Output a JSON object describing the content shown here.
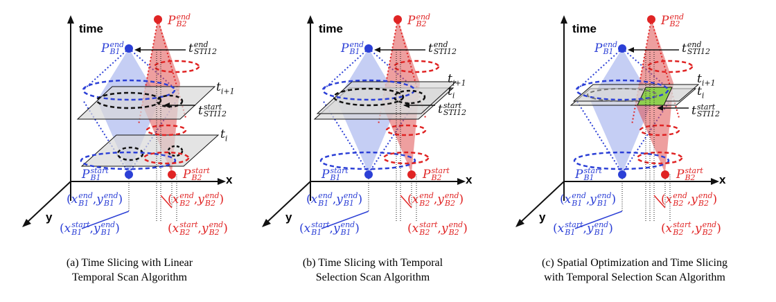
{
  "labels": {
    "time": "time",
    "x": "x",
    "y": "y"
  },
  "math": {
    "P": "P",
    "t": "t",
    "end": "end",
    "start": "start",
    "B1": "B1",
    "B2": "B2",
    "STI12": "STI12",
    "i": "i",
    "i_plus_1": "i+1",
    "x_var": "x",
    "y_var": "y",
    "open_paren": "(",
    "comma": ",",
    "close_paren": ")"
  },
  "panels": [
    {
      "caption_line1": "(a) Time Slicing with Linear",
      "caption_line2": "Temporal Scan Algorithm"
    },
    {
      "caption_line1": "(b) Time Slicing with Temporal",
      "caption_line2": "Selection Scan Algorithm"
    },
    {
      "caption_line1": "(c) Spatial Optimization and  Time Slicing",
      "caption_line2": "with Temporal Selection Scan Algorithm"
    }
  ],
  "colors": {
    "red": "#e02424",
    "blue": "#2b3fd6",
    "black": "#111111",
    "plane": "#d9d9d9",
    "highlight": "#8fcf4f"
  }
}
